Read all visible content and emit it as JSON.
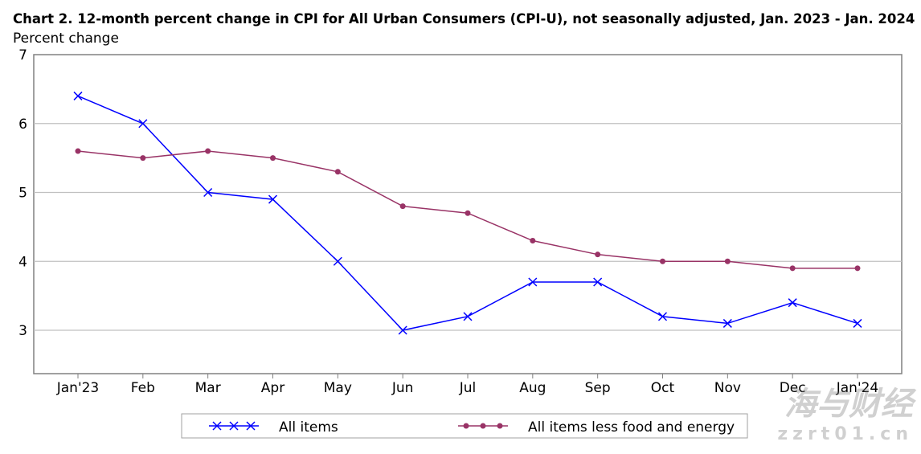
{
  "chart_data": {
    "type": "line",
    "title": "Chart 2. 12-month percent change in CPI for All Urban Consumers (CPI-U), not seasonally adjusted, Jan. 2023 - Jan. 2024",
    "ylabel": "Percent change",
    "xlabel": "",
    "categories": [
      "Jan'23",
      "Feb",
      "Mar",
      "Apr",
      "May",
      "Jun",
      "Jul",
      "Aug",
      "Sep",
      "Oct",
      "Nov",
      "Dec",
      "Jan'24"
    ],
    "yticks": [
      3,
      4,
      5,
      6,
      7
    ],
    "ylim": [
      2.4,
      7
    ],
    "grid": true,
    "legend": "bottom",
    "series": [
      {
        "name": "All items",
        "color": "#0000ff",
        "marker": "x",
        "values": [
          6.4,
          6.0,
          5.0,
          4.9,
          4.0,
          3.0,
          3.2,
          3.7,
          3.7,
          3.2,
          3.1,
          3.4,
          3.1
        ]
      },
      {
        "name": "All items less food and energy",
        "color": "#993366",
        "marker": "circle",
        "values": [
          5.6,
          5.5,
          5.6,
          5.5,
          5.3,
          4.8,
          4.7,
          4.3,
          4.1,
          4.0,
          4.0,
          3.9,
          3.9
        ]
      }
    ]
  },
  "watermark": {
    "line1": "海与财经",
    "line2": "zzrt01.cn"
  }
}
